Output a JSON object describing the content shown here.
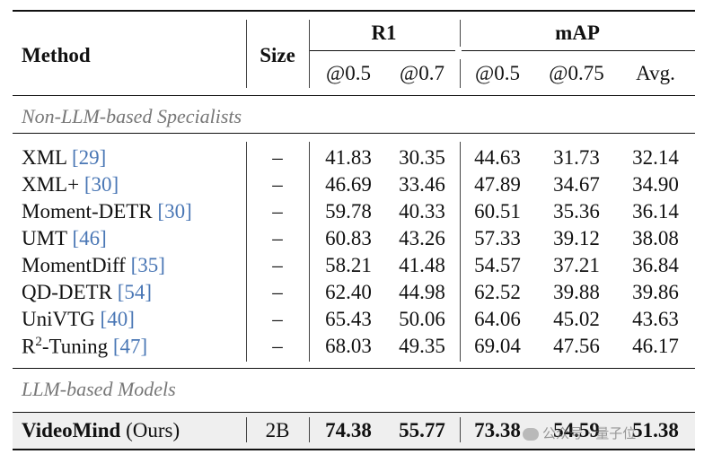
{
  "header": {
    "method": "Method",
    "size": "Size",
    "r1": "R1",
    "map": "mAP",
    "subcols": [
      "@0.5",
      "@0.7",
      "@0.5",
      "@0.75",
      "Avg."
    ]
  },
  "sections": {
    "non_llm": "Non-LLM-based Specialists",
    "llm": "LLM-based Models"
  },
  "rows": [
    {
      "name": "XML",
      "ref": "[29]",
      "size": "–",
      "vals": [
        "41.83",
        "30.35",
        "44.63",
        "31.73",
        "32.14"
      ]
    },
    {
      "name": "XML+",
      "ref": "[30]",
      "size": "–",
      "vals": [
        "46.69",
        "33.46",
        "47.89",
        "34.67",
        "34.90"
      ]
    },
    {
      "name": "Moment-DETR",
      "ref": "[30]",
      "size": "–",
      "vals": [
        "59.78",
        "40.33",
        "60.51",
        "35.36",
        "36.14"
      ]
    },
    {
      "name": "UMT",
      "ref": "[46]",
      "size": "–",
      "vals": [
        "60.83",
        "43.26",
        "57.33",
        "39.12",
        "38.08"
      ]
    },
    {
      "name": "MomentDiff",
      "ref": "[35]",
      "size": "–",
      "vals": [
        "58.21",
        "41.48",
        "54.57",
        "37.21",
        "36.84"
      ]
    },
    {
      "name": "QD-DETR",
      "ref": "[54]",
      "size": "–",
      "vals": [
        "62.40",
        "44.98",
        "62.52",
        "39.88",
        "39.86"
      ]
    },
    {
      "name": "UniVTG",
      "ref": "[40]",
      "size": "–",
      "vals": [
        "65.43",
        "50.06",
        "64.06",
        "45.02",
        "43.63"
      ]
    },
    {
      "name": "R",
      "sup": "2",
      "name_suffix": "-Tuning",
      "ref": "[47]",
      "size": "–",
      "vals": [
        "68.03",
        "49.35",
        "69.04",
        "47.56",
        "46.17"
      ]
    }
  ],
  "ours": {
    "name": "VideoMind",
    "suffix": "(Ours)",
    "size": "2B",
    "vals": [
      "74.38",
      "55.77",
      "73.38",
      "54.59",
      "51.38"
    ]
  },
  "watermark": "公众号 · 量子位"
}
